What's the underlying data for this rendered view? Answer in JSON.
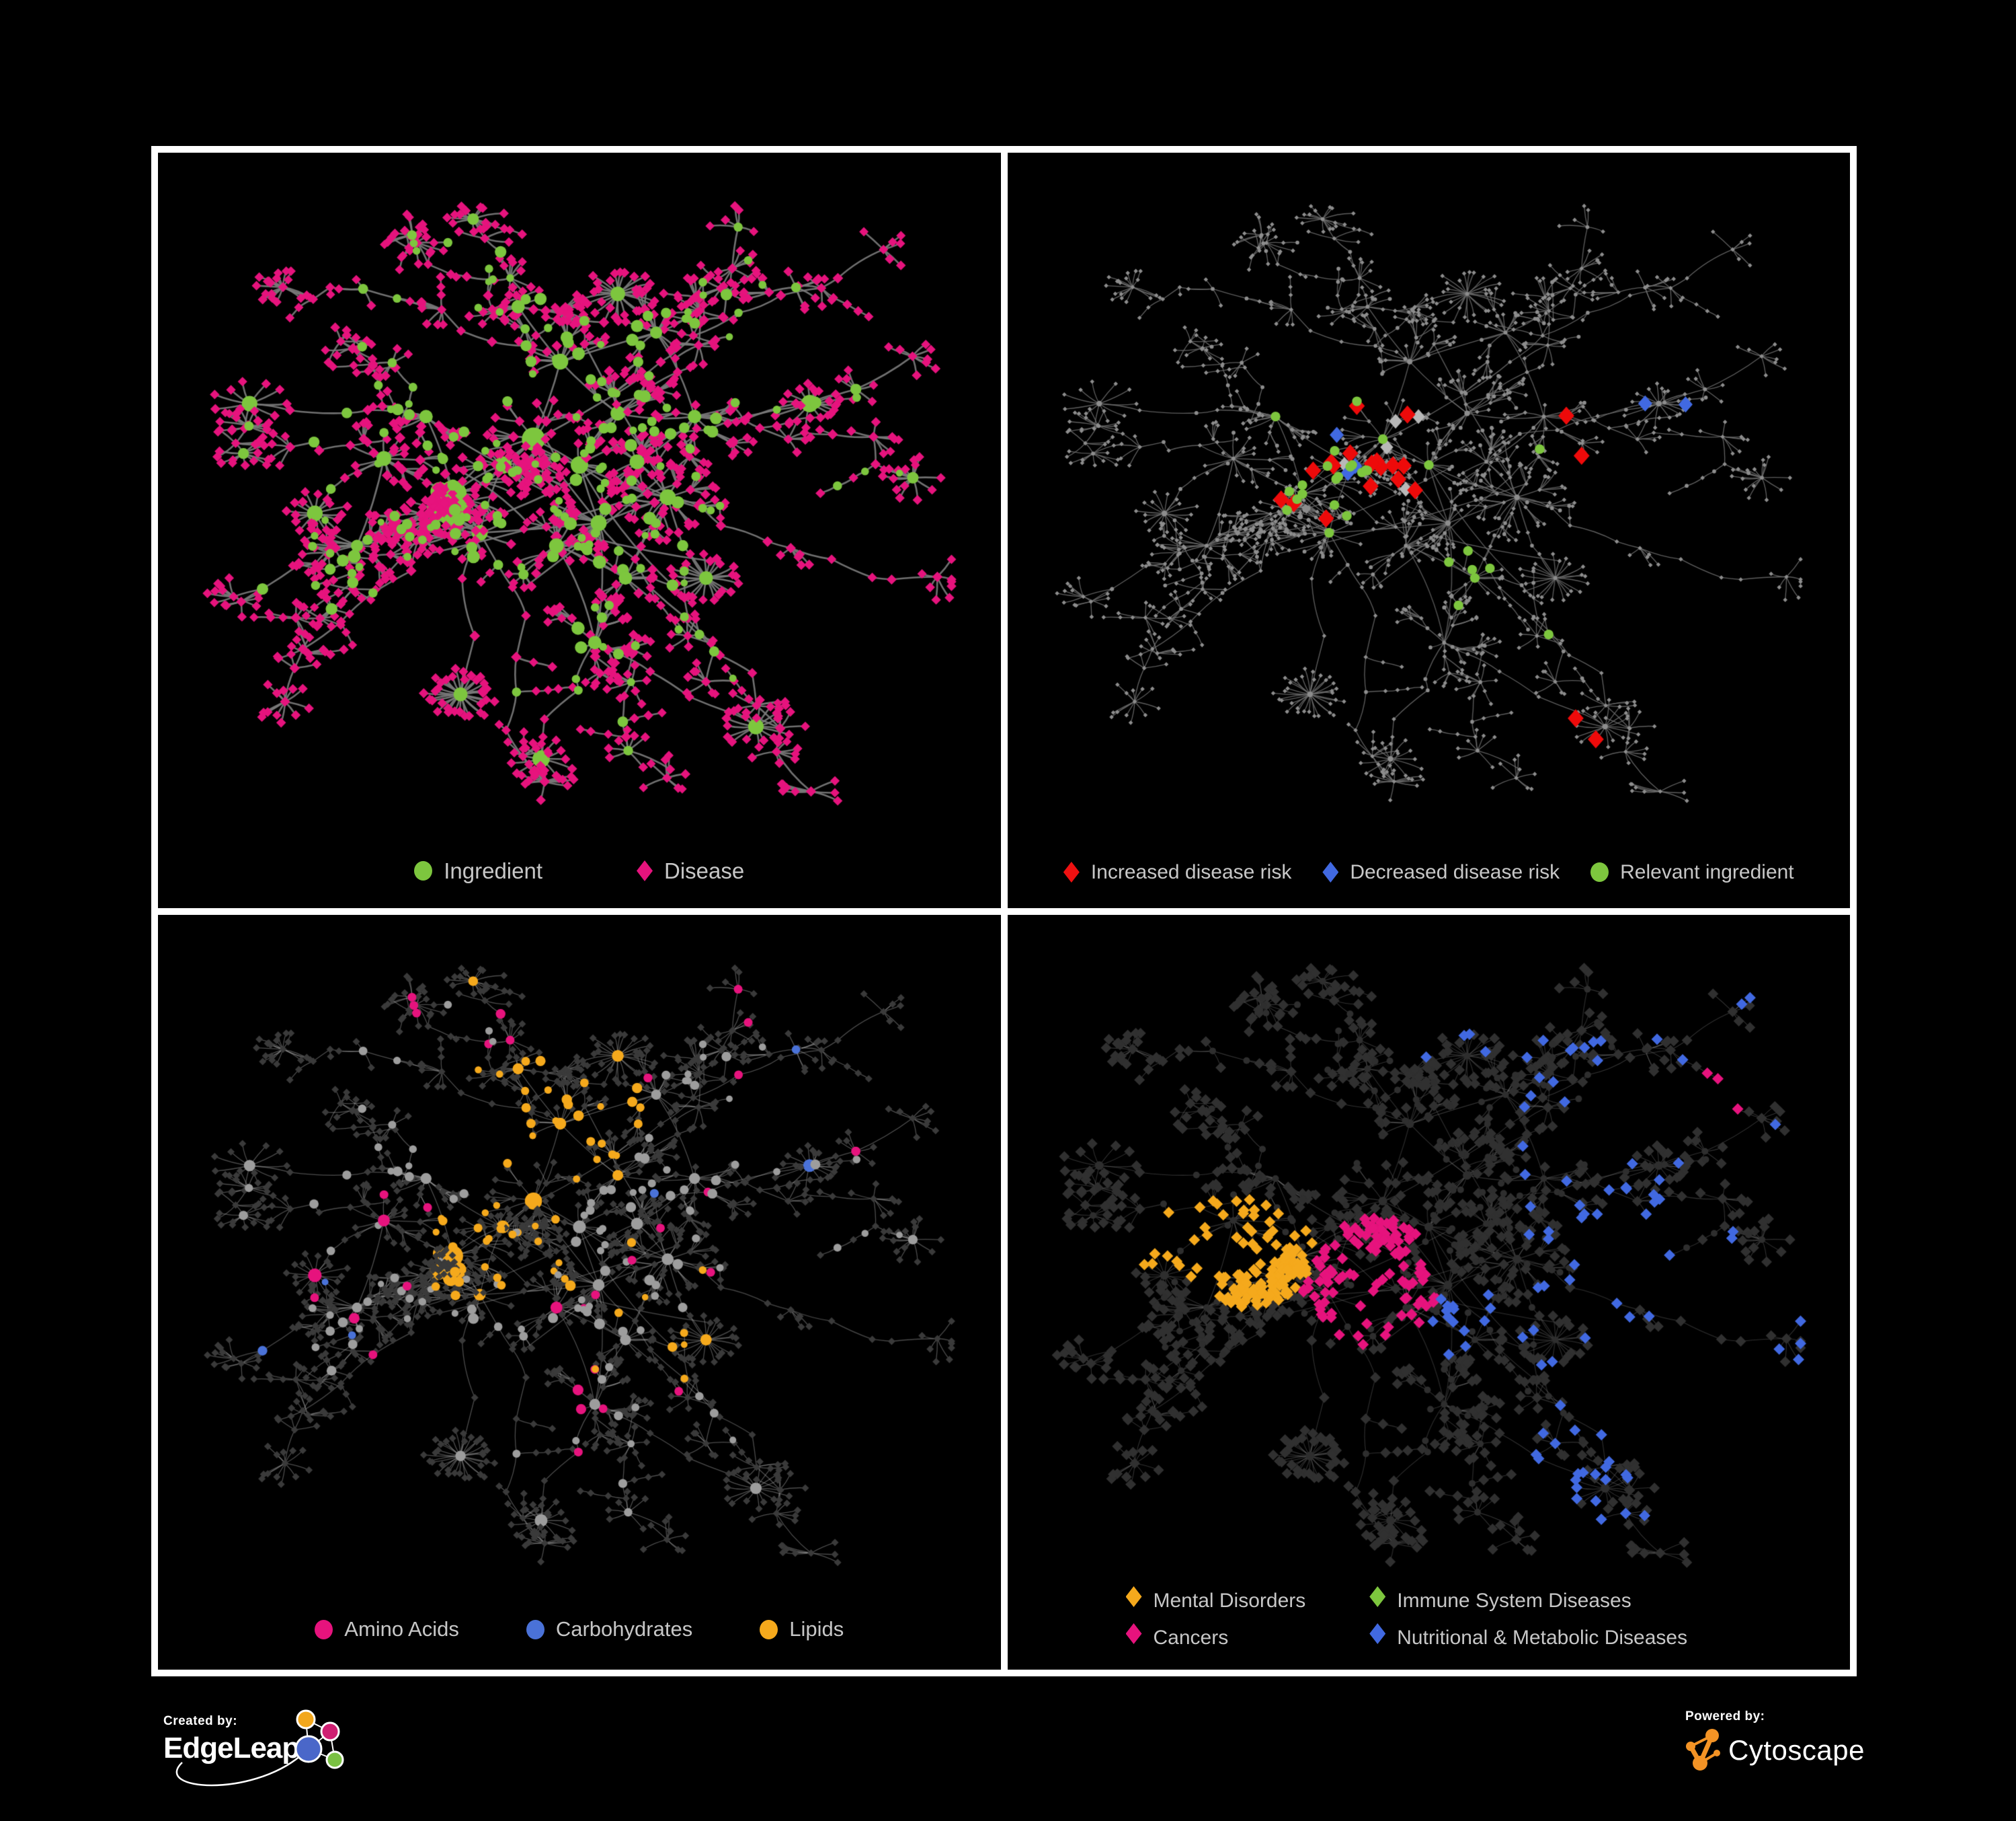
{
  "panels": [
    {
      "key": "p1",
      "legend_rows": [
        [
          {
            "label": "Ingredient",
            "shape": "circle",
            "color": "#7dc63e"
          },
          {
            "label": "Disease",
            "shape": "diamond",
            "color": "#e6137d"
          }
        ]
      ]
    },
    {
      "key": "p2",
      "legend_rows": [
        [
          {
            "label": "Increased disease risk",
            "shape": "diamond",
            "color": "#ee1111"
          },
          {
            "label": "Decreased disease risk",
            "shape": "diamond",
            "color": "#4169e1"
          },
          {
            "label": "Relevant ingredient",
            "shape": "circle",
            "color": "#7dc63e"
          }
        ]
      ]
    },
    {
      "key": "p3",
      "legend_rows": [
        [
          {
            "label": "Amino Acids",
            "shape": "circle",
            "color": "#e6137d"
          },
          {
            "label": "Carbohydrates",
            "shape": "circle",
            "color": "#4a72d8"
          },
          {
            "label": "Lipids",
            "shape": "circle",
            "color": "#f5a91c"
          }
        ]
      ]
    },
    {
      "key": "p4",
      "legend_rows": [
        [
          {
            "label": "Mental Disorders",
            "shape": "diamond",
            "color": "#f5a91c"
          },
          {
            "label": "Immune System Diseases",
            "shape": "diamond",
            "color": "#7dc63e"
          }
        ],
        [
          {
            "label": "Cancers",
            "shape": "diamond",
            "color": "#e6137d"
          },
          {
            "label": "Nutritional & Metabolic Diseases",
            "shape": "diamond",
            "color": "#4169e1"
          }
        ]
      ]
    }
  ],
  "footer": {
    "created_by": "Created by:",
    "created_brand": "EdgeLeap",
    "powered_by": "Powered by:",
    "powered_brand": "Cytoscape"
  },
  "colors": {
    "ingredient_green": "#7dc63e",
    "disease_pink": "#e6137d",
    "risk_red": "#ee0a0a",
    "risk_blue": "#4169e1",
    "lipid_orange": "#f5a91c",
    "carb_blue": "#4a72d8",
    "edge_gray": "#757575"
  }
}
